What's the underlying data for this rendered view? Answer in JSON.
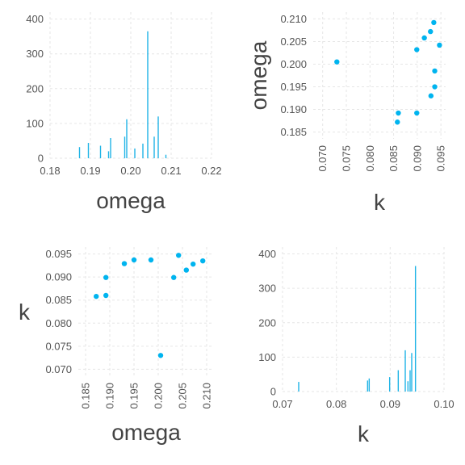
{
  "colors": {
    "series": "#00b4ef",
    "grid": "#e6e6e6",
    "tick_text": "#555555",
    "label_text": "#444444"
  },
  "chart_data": [
    {
      "id": "p1",
      "type": "bar",
      "title": "",
      "xlabel": "omega",
      "ylabel": "",
      "xlim": [
        0.18,
        0.22
      ],
      "ylim": [
        0,
        420
      ],
      "xticks": [
        0.18,
        0.19,
        0.2,
        0.21,
        0.22
      ],
      "xtick_labels": [
        "0.18",
        "0.19",
        "0.20",
        "0.21",
        "0.22"
      ],
      "yticks": [
        0,
        100,
        200,
        300,
        400
      ],
      "ytick_labels": [
        "0",
        "100",
        "200",
        "300",
        "400"
      ],
      "grid": true,
      "legend": "none",
      "bars": [
        {
          "x": 0.1873,
          "y": 32
        },
        {
          "x": 0.1895,
          "y": 44
        },
        {
          "x": 0.1925,
          "y": 36
        },
        {
          "x": 0.1945,
          "y": 20
        },
        {
          "x": 0.195,
          "y": 58
        },
        {
          "x": 0.1985,
          "y": 62
        },
        {
          "x": 0.199,
          "y": 112
        },
        {
          "x": 0.201,
          "y": 28
        },
        {
          "x": 0.203,
          "y": 42
        },
        {
          "x": 0.2042,
          "y": 365
        },
        {
          "x": 0.2058,
          "y": 62
        },
        {
          "x": 0.2068,
          "y": 120
        },
        {
          "x": 0.2087,
          "y": 10
        }
      ]
    },
    {
      "id": "p2",
      "type": "scatter",
      "title": "",
      "xlabel": "k",
      "ylabel": "omega",
      "xlim": [
        0.068,
        0.096
      ],
      "ylim": [
        0.1835,
        0.2115
      ],
      "xticks": [
        0.07,
        0.075,
        0.08,
        0.085,
        0.09,
        0.095
      ],
      "xtick_labels": [
        "0.070",
        "0.075",
        "0.080",
        "0.085",
        "0.090",
        "0.095"
      ],
      "yticks": [
        0.185,
        0.19,
        0.195,
        0.2,
        0.205,
        0.21
      ],
      "ytick_labels": [
        "0.185",
        "0.190",
        "0.195",
        "0.200",
        "0.205",
        "0.210"
      ],
      "grid": true,
      "legend": "none",
      "points": [
        {
          "x": 0.073,
          "y": 0.2005
        },
        {
          "x": 0.0858,
          "y": 0.1872
        },
        {
          "x": 0.086,
          "y": 0.1892
        },
        {
          "x": 0.0899,
          "y": 0.2032
        },
        {
          "x": 0.0899,
          "y": 0.1892
        },
        {
          "x": 0.0915,
          "y": 0.2058
        },
        {
          "x": 0.0928,
          "y": 0.2072
        },
        {
          "x": 0.0929,
          "y": 0.193
        },
        {
          "x": 0.0935,
          "y": 0.2092
        },
        {
          "x": 0.0937,
          "y": 0.1985
        },
        {
          "x": 0.0937,
          "y": 0.195
        },
        {
          "x": 0.0947,
          "y": 0.2042
        }
      ]
    },
    {
      "id": "p3",
      "type": "scatter",
      "title": "",
      "xlabel": "omega",
      "ylabel": "k",
      "xlim": [
        0.1835,
        0.2115
      ],
      "ylim": [
        0.0685,
        0.0965
      ],
      "xticks": [
        0.185,
        0.19,
        0.195,
        0.2,
        0.205,
        0.21
      ],
      "xtick_labels": [
        "0.185",
        "0.190",
        "0.195",
        "0.200",
        "0.205",
        "0.210"
      ],
      "yticks": [
        0.07,
        0.075,
        0.08,
        0.085,
        0.09,
        0.095
      ],
      "ytick_labels": [
        "0.070",
        "0.075",
        "0.080",
        "0.085",
        "0.090",
        "0.095"
      ],
      "grid": true,
      "legend": "none",
      "points": [
        {
          "x": 0.1872,
          "y": 0.0858
        },
        {
          "x": 0.1892,
          "y": 0.086
        },
        {
          "x": 0.1892,
          "y": 0.0899
        },
        {
          "x": 0.193,
          "y": 0.0929
        },
        {
          "x": 0.195,
          "y": 0.0937
        },
        {
          "x": 0.1985,
          "y": 0.0937
        },
        {
          "x": 0.2005,
          "y": 0.073
        },
        {
          "x": 0.2032,
          "y": 0.0899
        },
        {
          "x": 0.2042,
          "y": 0.0947
        },
        {
          "x": 0.2058,
          "y": 0.0915
        },
        {
          "x": 0.2072,
          "y": 0.0928
        },
        {
          "x": 0.2092,
          "y": 0.0935
        }
      ]
    },
    {
      "id": "p4",
      "type": "bar",
      "title": "",
      "xlabel": "k",
      "ylabel": "",
      "xlim": [
        0.07,
        0.1
      ],
      "ylim": [
        0,
        420
      ],
      "xticks": [
        0.07,
        0.08,
        0.09,
        0.1
      ],
      "xtick_labels": [
        "0.07",
        "0.08",
        "0.09",
        "0.10"
      ],
      "yticks": [
        0,
        100,
        200,
        300,
        400
      ],
      "ytick_labels": [
        "0",
        "100",
        "200",
        "300",
        "400"
      ],
      "grid": true,
      "legend": "none",
      "bars": [
        {
          "x": 0.073,
          "y": 28
        },
        {
          "x": 0.0858,
          "y": 32
        },
        {
          "x": 0.0861,
          "y": 38
        },
        {
          "x": 0.0899,
          "y": 42
        },
        {
          "x": 0.0915,
          "y": 62
        },
        {
          "x": 0.0928,
          "y": 120
        },
        {
          "x": 0.0933,
          "y": 30
        },
        {
          "x": 0.0937,
          "y": 62
        },
        {
          "x": 0.094,
          "y": 112
        },
        {
          "x": 0.0947,
          "y": 365
        }
      ]
    }
  ]
}
